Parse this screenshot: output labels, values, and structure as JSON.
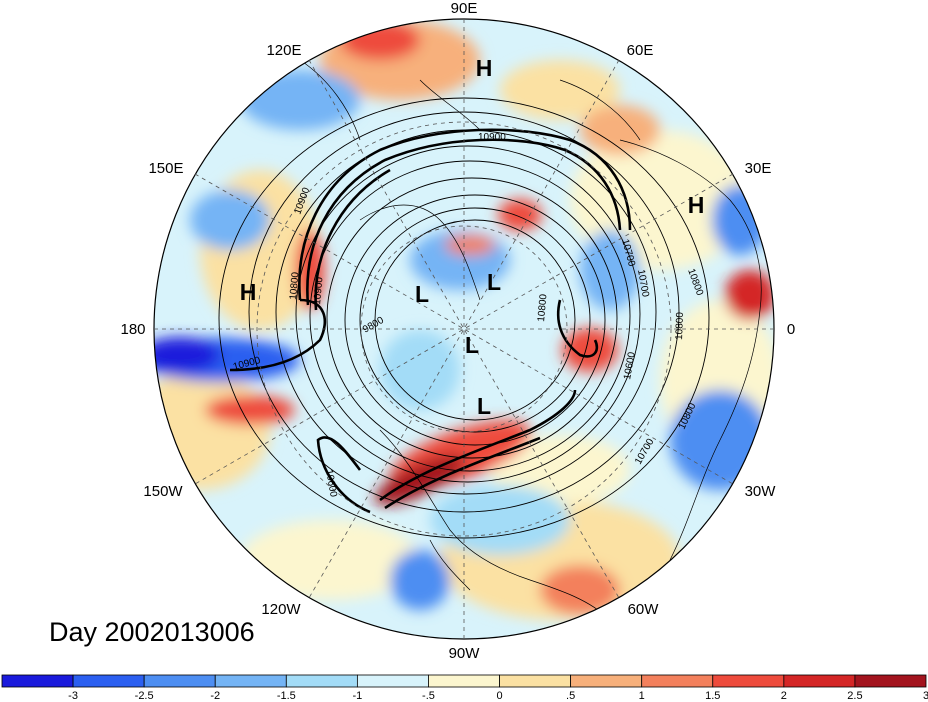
{
  "title": "Day 2002013006",
  "longitude_labels": {
    "n": "90E",
    "ne_upper": "60E",
    "nw_upper": "120E",
    "ne_lower": "30E",
    "nw_lower": "150E",
    "e": "0",
    "w": "180",
    "sw_upper": "150W",
    "se_upper": "30W",
    "sw_lower": "120W",
    "se_lower": "60W",
    "s": "90W"
  },
  "pressure_centers": [
    {
      "type": "H",
      "label": "H",
      "region": "north-central"
    },
    {
      "type": "H",
      "label": "H",
      "region": "east"
    },
    {
      "type": "H",
      "label": "H",
      "region": "west"
    },
    {
      "type": "L",
      "label": "L",
      "region": "center-left"
    },
    {
      "type": "L",
      "label": "L",
      "region": "center-right"
    },
    {
      "type": "L",
      "label": "L",
      "region": "center"
    },
    {
      "type": "L",
      "label": "L",
      "region": "center-lower"
    }
  ],
  "contour_labels": [
    "10900",
    "10800",
    "10700",
    "10600",
    "9800",
    "10900",
    "10800",
    "10800",
    "10700",
    "10800",
    "10900",
    "10800",
    "10700",
    "10600",
    "10900"
  ],
  "colorbar": {
    "colors": [
      "#1a1adc",
      "#2b5ff0",
      "#4d8ef2",
      "#74b4f5",
      "#a3dcf7",
      "#d8f3fb",
      "#fcf6cf",
      "#fbe1a3",
      "#f7b07b",
      "#f3805c",
      "#ee4b3c",
      "#d42626",
      "#a3141e"
    ],
    "tick_labels": [
      "-3",
      "-2.5",
      "-2",
      "-1.5",
      "-1",
      "-.5",
      "0",
      ".5",
      "1",
      "1.5",
      "2",
      "2.5",
      "3"
    ]
  }
}
